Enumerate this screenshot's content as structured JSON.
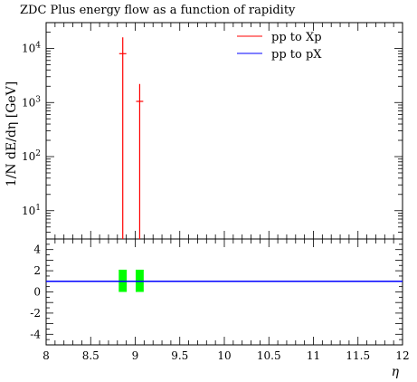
{
  "chart_data": {
    "type": "line",
    "title": "ZDC Plus energy flow as a function of rapidity",
    "xlabel": "η",
    "ylabel": "1/N dE/dη [GeV]",
    "xlim": [
      8,
      12
    ],
    "x_ticks": [
      "8",
      "8.5",
      "9",
      "9.5",
      "10",
      "10.5",
      "11",
      "11.5",
      "12"
    ],
    "x_tick_values": [
      8,
      8.5,
      9,
      9.5,
      10,
      10.5,
      11,
      11.5,
      12
    ],
    "main_panel": {
      "yscale": "log",
      "ylim": [
        3,
        30000
      ],
      "y_ticks": [
        {
          "base": "10",
          "exp": "1",
          "value": 10
        },
        {
          "base": "10",
          "exp": "2",
          "value": 100
        },
        {
          "base": "10",
          "exp": "3",
          "value": 1000
        },
        {
          "base": "10",
          "exp": "4",
          "value": 10000
        }
      ],
      "series": [
        {
          "name": "pp to Xp",
          "color": "#ff0000",
          "points": [
            {
              "x": 8.86,
              "y": 8000,
              "yhigh": 16000,
              "ylow": 3,
              "xerr": 0.04
            },
            {
              "x": 9.05,
              "y": 1050,
              "yhigh": 2200,
              "ylow": 3,
              "xerr": 0.04
            }
          ]
        },
        {
          "name": "pp to pX",
          "color": "#0000ff",
          "points": []
        }
      ],
      "legend_position": "top-right"
    },
    "ratio_panel": {
      "ylim": [
        -5,
        5
      ],
      "y_ticks": [
        "-4",
        "-2",
        "0",
        "2",
        "4"
      ],
      "y_tick_values": [
        -4,
        -2,
        0,
        2,
        4
      ],
      "reference_line": {
        "y": 1,
        "color": "#0000ff"
      },
      "band_color": "#00ff00",
      "bands": [
        {
          "x": 8.86,
          "xerr": 0.045,
          "ylow": 0,
          "yhigh": 2.1
        },
        {
          "x": 9.05,
          "xerr": 0.045,
          "ylow": 0,
          "yhigh": 2.1
        }
      ]
    }
  }
}
